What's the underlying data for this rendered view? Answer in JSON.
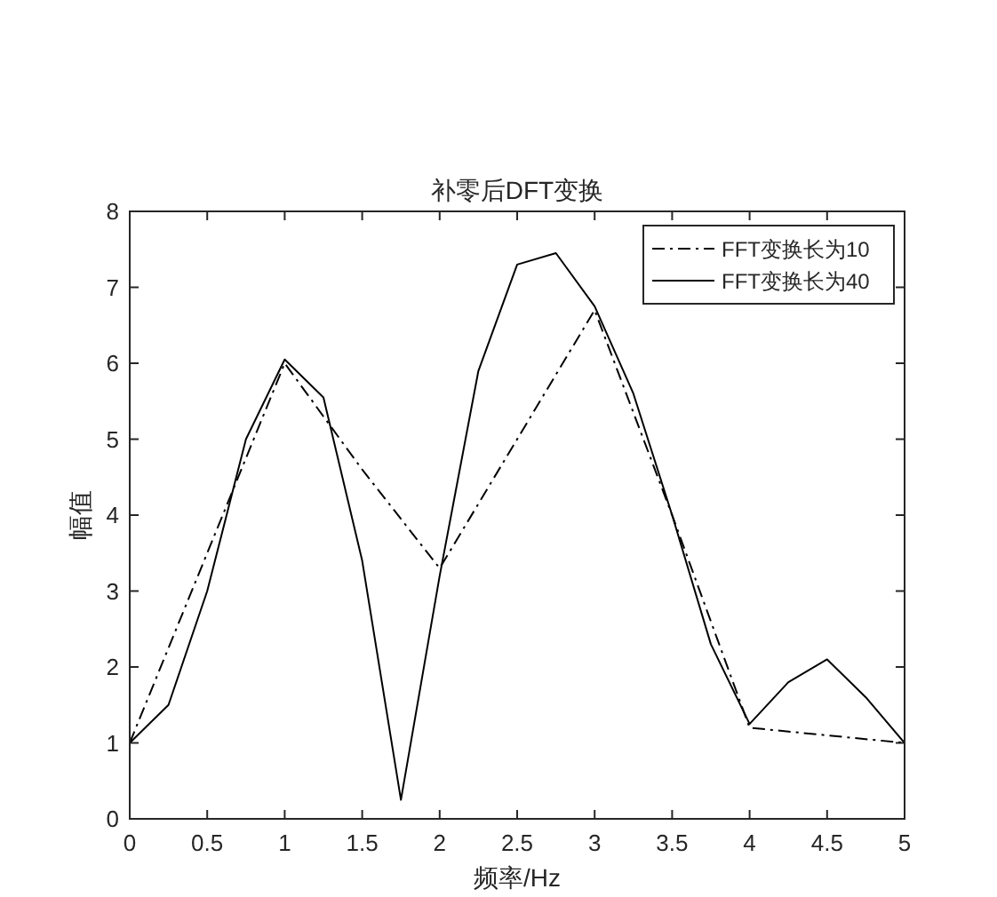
{
  "chart_data": {
    "type": "line",
    "title": "补零后DFT变换",
    "xlabel": "频率/Hz",
    "ylabel": "幅值",
    "xlim": [
      0,
      5
    ],
    "ylim": [
      0,
      8
    ],
    "xticks": [
      0,
      0.5,
      1,
      1.5,
      2,
      2.5,
      3,
      3.5,
      4,
      4.5,
      5
    ],
    "yticks": [
      0,
      1,
      2,
      3,
      4,
      5,
      6,
      7,
      8
    ],
    "grid": false,
    "legend": "top right",
    "marker": "none",
    "series": [
      {
        "name": "FFT变换长为10",
        "color": "#000000",
        "line_style": "dashdot",
        "x": [
          0,
          0.5,
          1,
          1.5,
          2,
          2.5,
          3,
          3.5,
          4,
          4.5,
          5
        ],
        "values": [
          1.0,
          3.5,
          6.0,
          4.6,
          3.3,
          5.0,
          6.7,
          4.0,
          1.2,
          1.1,
          1.0
        ]
      },
      {
        "name": "FFT变换长为40",
        "color": "#000000",
        "line_style": "solid",
        "x": [
          0,
          0.25,
          0.5,
          0.75,
          1,
          1.25,
          1.5,
          1.75,
          2,
          2.25,
          2.5,
          2.75,
          3,
          3.25,
          3.5,
          3.75,
          4,
          4.25,
          4.5,
          4.75,
          5
        ],
        "values": [
          1.0,
          1.5,
          3.0,
          5.0,
          6.05,
          5.55,
          3.4,
          0.25,
          3.2,
          5.9,
          7.3,
          7.45,
          6.75,
          5.6,
          4.0,
          2.3,
          1.25,
          1.8,
          2.1,
          1.6,
          1.0
        ]
      }
    ]
  }
}
